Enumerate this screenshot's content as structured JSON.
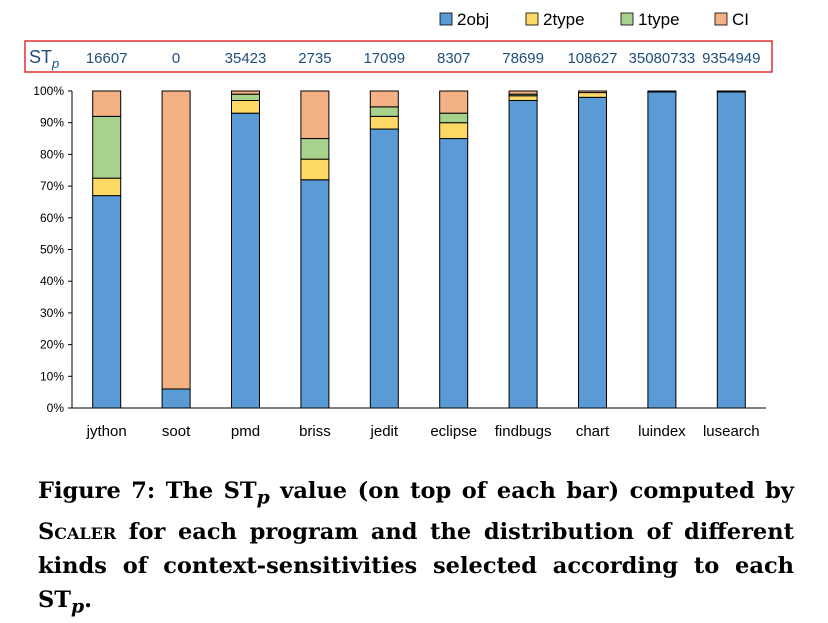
{
  "chart_data": {
    "type": "bar",
    "stacked": true,
    "categories": [
      "jython",
      "soot",
      "pmd",
      "briss",
      "jedit",
      "eclipse",
      "findbugs",
      "chart",
      "luindex",
      "lusearch"
    ],
    "series": [
      {
        "name": "2obj",
        "color": "#5b9bd5",
        "values": [
          67,
          6,
          93,
          72,
          88,
          85,
          97,
          98,
          99.7,
          99.7
        ]
      },
      {
        "name": "2type",
        "color": "#ffd966",
        "values": [
          5.5,
          0,
          4,
          6.5,
          4,
          5,
          1.5,
          1.5,
          0,
          0
        ]
      },
      {
        "name": "1type",
        "color": "#a9d18e",
        "values": [
          19.5,
          0,
          2,
          6.5,
          3,
          3,
          0.5,
          0,
          0,
          0
        ]
      },
      {
        "name": "CI",
        "color": "#f4b183",
        "values": [
          8,
          94,
          1,
          15,
          5,
          7,
          1,
          0.5,
          0.3,
          0.3
        ]
      }
    ],
    "stp": {
      "label_main": "ST",
      "label_sub": "p",
      "values": [
        "16607",
        "0",
        "35423",
        "2735",
        "17099",
        "8307",
        "78699",
        "108627",
        "35080733",
        "9354949"
      ]
    },
    "yticks": [
      "0%",
      "10%",
      "20%",
      "30%",
      "40%",
      "50%",
      "60%",
      "70%",
      "80%",
      "90%",
      "100%"
    ],
    "ylim": [
      0,
      100
    ],
    "legend_position": "top"
  },
  "caption": {
    "part1": "Figure 7: The ST",
    "sub1": "p",
    "part2": " value (on top of each bar) computed by ",
    "scaler": "Scaler",
    "part3": " for each program and the distribution of different kinds of context-sensitivities selected according to each ST",
    "sub2": "p",
    "part4": "."
  }
}
